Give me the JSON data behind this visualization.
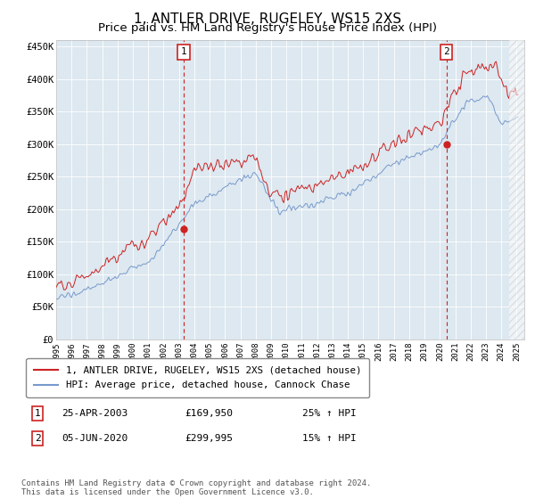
{
  "title": "1, ANTLER DRIVE, RUGELEY, WS15 2XS",
  "subtitle": "Price paid vs. HM Land Registry's House Price Index (HPI)",
  "xlim": [
    1995,
    2025.5
  ],
  "ylim": [
    0,
    460000
  ],
  "yticks": [
    0,
    50000,
    100000,
    150000,
    200000,
    250000,
    300000,
    350000,
    400000,
    450000
  ],
  "ytick_labels": [
    "£0",
    "£50K",
    "£100K",
    "£150K",
    "£200K",
    "£250K",
    "£300K",
    "£350K",
    "£400K",
    "£450K"
  ],
  "xticks": [
    1995,
    1996,
    1997,
    1998,
    1999,
    2000,
    2001,
    2002,
    2003,
    2004,
    2005,
    2006,
    2007,
    2008,
    2009,
    2010,
    2011,
    2012,
    2013,
    2014,
    2015,
    2016,
    2017,
    2018,
    2019,
    2020,
    2021,
    2022,
    2023,
    2024,
    2025
  ],
  "hpi_color": "#7799cc",
  "price_color": "#cc2222",
  "vline_color": "#cc2222",
  "annotation_box_color": "#cc2222",
  "plot_bg_color": "#dde8f0",
  "legend_label_red": "1, ANTLER DRIVE, RUGELEY, WS15 2XS (detached house)",
  "legend_label_blue": "HPI: Average price, detached house, Cannock Chase",
  "sale1_date": "25-APR-2003",
  "sale1_price": "£169,950",
  "sale1_hpi": "25% ↑ HPI",
  "sale1_x": 2003.3,
  "sale1_y": 169950,
  "sale2_date": "05-JUN-2020",
  "sale2_price": "£299,995",
  "sale2_hpi": "15% ↑ HPI",
  "sale2_x": 2020.43,
  "sale2_y": 299995,
  "footer": "Contains HM Land Registry data © Crown copyright and database right 2024.\nThis data is licensed under the Open Government Licence v3.0.",
  "title_fontsize": 11,
  "subtitle_fontsize": 9.5
}
